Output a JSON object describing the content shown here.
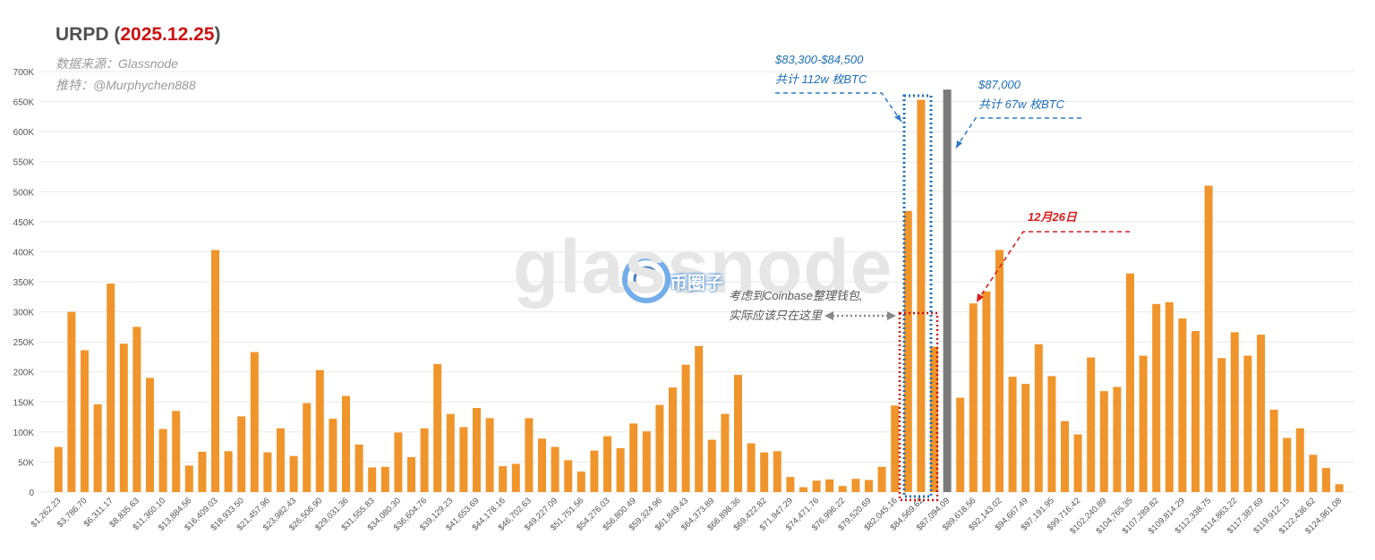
{
  "header": {
    "title_prefix": "URPD (",
    "title_date": "2025.12.25",
    "title_suffix": ")",
    "source": "数据来源：Glassnode",
    "twitter": "推特：@Murphychen888"
  },
  "watermark": {
    "text": "glassnode",
    "logo_text": "币圈子"
  },
  "annotations": {
    "range_line1": "$83,300-$84,500",
    "range_line2": "共计 112w 枚BTC",
    "price_line1": "$87,000",
    "price_line2": "共计 67w 枚BTC",
    "date_note": "12月26日",
    "coinbase_line1": "考虑到Coinbase整理钱包,",
    "coinbase_line2": "实际应该只在这里"
  },
  "colors": {
    "bar": "#f0952b",
    "current_price_bar": "#7a7a7a",
    "blue_box": "#1f6fb5",
    "red_box": "#cc1111",
    "title_date": "#cc1111",
    "grid": "#e8e8e8"
  },
  "chart_data": {
    "type": "bar",
    "title": "URPD (2025.12.25)",
    "xlabel": "",
    "ylabel": "",
    "ylim": [
      0,
      700000
    ],
    "y_ticks": [
      0,
      50000,
      100000,
      150000,
      200000,
      250000,
      300000,
      350000,
      400000,
      450000,
      500000,
      550000,
      600000,
      650000,
      700000
    ],
    "y_tick_labels": [
      "0",
      "50K",
      "100K",
      "150K",
      "200K",
      "250K",
      "300K",
      "350K",
      "400K",
      "450K",
      "500K",
      "550K",
      "600K",
      "650K",
      "700K"
    ],
    "x_tick_labels": [
      "$1,262.23",
      "$3,786.70",
      "$6,311.17",
      "$8,835.63",
      "$11,360.10",
      "$13,884.56",
      "$16,409.03",
      "$18,933.50",
      "$21,457.96",
      "$23,982.43",
      "$26,506.90",
      "$29,031.36",
      "$31,555.83",
      "$34,080.30",
      "$36,604.76",
      "$39,129.23",
      "$41,653.69",
      "$44,178.16",
      "$46,702.63",
      "$49,227.09",
      "$51,751.56",
      "$54,276.03",
      "$56,800.49",
      "$59,324.96",
      "$61,849.43",
      "$64,373.89",
      "$66,898.36",
      "$69,422.82",
      "$71,947.29",
      "$74,471.76",
      "$76,996.22",
      "$79,520.69",
      "$82,045.16",
      "$84,569.62",
      "$87,094.09",
      "$89,618.56",
      "$92,143.02",
      "$94,667.49",
      "$97,191.95",
      "$99,716.42",
      "$102,240.89",
      "$104,765.35",
      "$107,289.82",
      "$109,814.29",
      "$112,338.75",
      "$114,863.22",
      "$117,387.69",
      "$119,912.15",
      "$122,436.62",
      "$124,961.08"
    ],
    "bucket_start": 1262.23,
    "bucket_width": 1262.2334,
    "values": [
      75000,
      300000,
      236000,
      146000,
      347000,
      247000,
      275000,
      190000,
      105000,
      135000,
      44000,
      67000,
      403000,
      68000,
      126000,
      233000,
      66000,
      106000,
      60000,
      148000,
      203000,
      122000,
      160000,
      79000,
      41000,
      42000,
      99000,
      58000,
      106000,
      213000,
      130000,
      108000,
      140000,
      123000,
      43000,
      47000,
      123000,
      89000,
      75000,
      53000,
      34000,
      69000,
      93000,
      73000,
      114000,
      101000,
      145000,
      174000,
      212000,
      243000,
      87000,
      130000,
      195000,
      81000,
      66000,
      68000,
      25000,
      8000,
      19000,
      21000,
      10000,
      22000,
      20000,
      42000,
      144000,
      468000,
      653000,
      242000,
      0,
      157000,
      314000,
      334000,
      403000,
      192000,
      180000,
      246000,
      193000,
      118000,
      96000,
      224000,
      168000,
      175000,
      364000,
      227000,
      313000,
      316000,
      289000,
      268000,
      510000,
      223000,
      266000,
      227000,
      262000,
      137000,
      90000,
      106000,
      62000,
      40000,
      13000
    ],
    "current_price_marker": {
      "label": "$87,000",
      "bucket_index": 68,
      "value": 670000
    },
    "legend": "none",
    "grid": true
  }
}
